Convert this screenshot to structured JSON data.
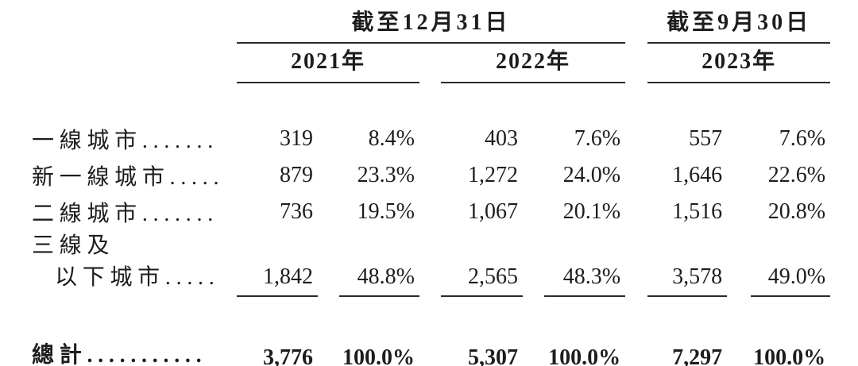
{
  "meta": {
    "background_color": "#ffffff",
    "text_color": "#1d1d1d",
    "rule_color": "#2b2b2b"
  },
  "table": {
    "header": {
      "group_dec31": "截至12月31日",
      "group_sep30": "截至9月30日",
      "years": [
        "2021年",
        "2022年",
        "2023年"
      ]
    },
    "rows": [
      {
        "label": "一線城市.......",
        "values": [
          "319",
          "8.4%",
          "403",
          "7.6%",
          "557",
          "7.6%"
        ]
      },
      {
        "label": "新一線城市.....",
        "values": [
          "879",
          "23.3%",
          "1,272",
          "24.0%",
          "1,646",
          "22.6%"
        ]
      },
      {
        "label": "二線城市.......",
        "values": [
          "736",
          "19.5%",
          "1,067",
          "20.1%",
          "1,516",
          "20.8%"
        ]
      },
      {
        "label_line1": "三線及",
        "label_line2": "以下城市.....",
        "values": [
          "1,842",
          "48.8%",
          "2,565",
          "48.3%",
          "3,578",
          "49.0%"
        ]
      }
    ],
    "total": {
      "label": "總計...........",
      "values": [
        "3,776",
        "100.0%",
        "5,307",
        "100.0%",
        "7,297",
        "100.0%"
      ]
    }
  }
}
